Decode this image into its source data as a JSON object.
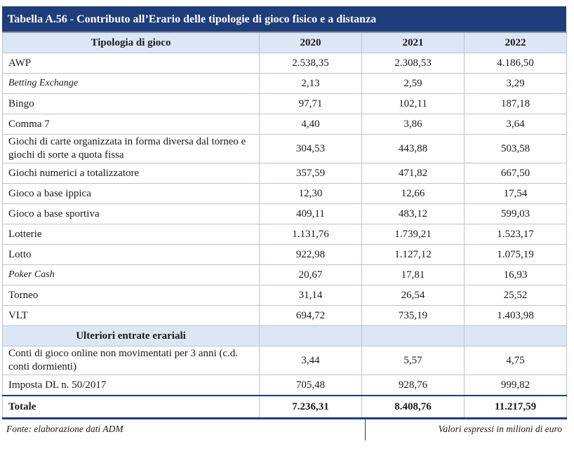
{
  "title": "Tabella A.56 - Contributo all’Erario delle tipologie di gioco fisico e a distanza",
  "headers": [
    "Tipologia di gioco",
    "2020",
    "2021",
    "2022"
  ],
  "rows": [
    {
      "label": "AWP",
      "v2020": "2.538,35",
      "v2021": "2.308,53",
      "v2022": "4.186,50"
    },
    {
      "label": "Betting Exchange",
      "v2020": "2,13",
      "v2021": "2,59",
      "v2022": "3,29"
    },
    {
      "label": "Bingo",
      "v2020": "97,71",
      "v2021": "102,11",
      "v2022": "187,18"
    },
    {
      "label": "Comma 7",
      "v2020": "4,40",
      "v2021": "3,86",
      "v2022": "3,64"
    },
    {
      "label": "Giochi di carte organizzata in forma diversa dal torneo e giochi di sorte a quota fissa",
      "v2020": "304,53",
      "v2021": "443,88",
      "v2022": "503,58"
    },
    {
      "label": "Giochi numerici a totalizzatore",
      "v2020": "357,59",
      "v2021": "471,82",
      "v2022": "667,50"
    },
    {
      "label": "Gioco a base ippica",
      "v2020": "12,30",
      "v2021": "12,66",
      "v2022": "17,54"
    },
    {
      "label": "Gioco a base sportiva",
      "v2020": "409,11",
      "v2021": "483,12",
      "v2022": "599,03"
    },
    {
      "label": "Lotterie",
      "v2020": "1.131,76",
      "v2021": "1.739,21",
      "v2022": "1.523,17"
    },
    {
      "label": "Lotto",
      "v2020": "922,98",
      "v2021": "1.127,12",
      "v2022": "1.075,19"
    },
    {
      "label": "Poker Cash",
      "v2020": "20,67",
      "v2021": "17,81",
      "v2022": "16,93"
    },
    {
      "label": "Torneo",
      "v2020": "31,14",
      "v2021": "26,54",
      "v2022": "25,52"
    },
    {
      "label": "VLT",
      "v2020": "694,72",
      "v2021": "735,19",
      "v2022": "1.403,98"
    }
  ],
  "section_label": "Ulteriori entrate erariali",
  "extra_rows": [
    {
      "label": "Conti di gioco online non movimentati per 3 anni (c.d. conti dormienti)",
      "v2020": "3,44",
      "v2021": "5,57",
      "v2022": "4,75"
    },
    {
      "label": "Imposta DL n. 50/2017",
      "v2020": "705,48",
      "v2021": "928,76",
      "v2022": "999,82"
    }
  ],
  "total": {
    "label": "Totale",
    "v2020": "7.236,31",
    "v2021": "8.408,76",
    "v2022": "11.217,59"
  },
  "footer": {
    "source": "Fonte: elaborazione dati ADM",
    "units": "Valori espressi in milioni di euro"
  },
  "colors": {
    "title_bg": "#1f3d7a",
    "header_bg": "#dce6f4",
    "border": "#b9c3d6"
  }
}
